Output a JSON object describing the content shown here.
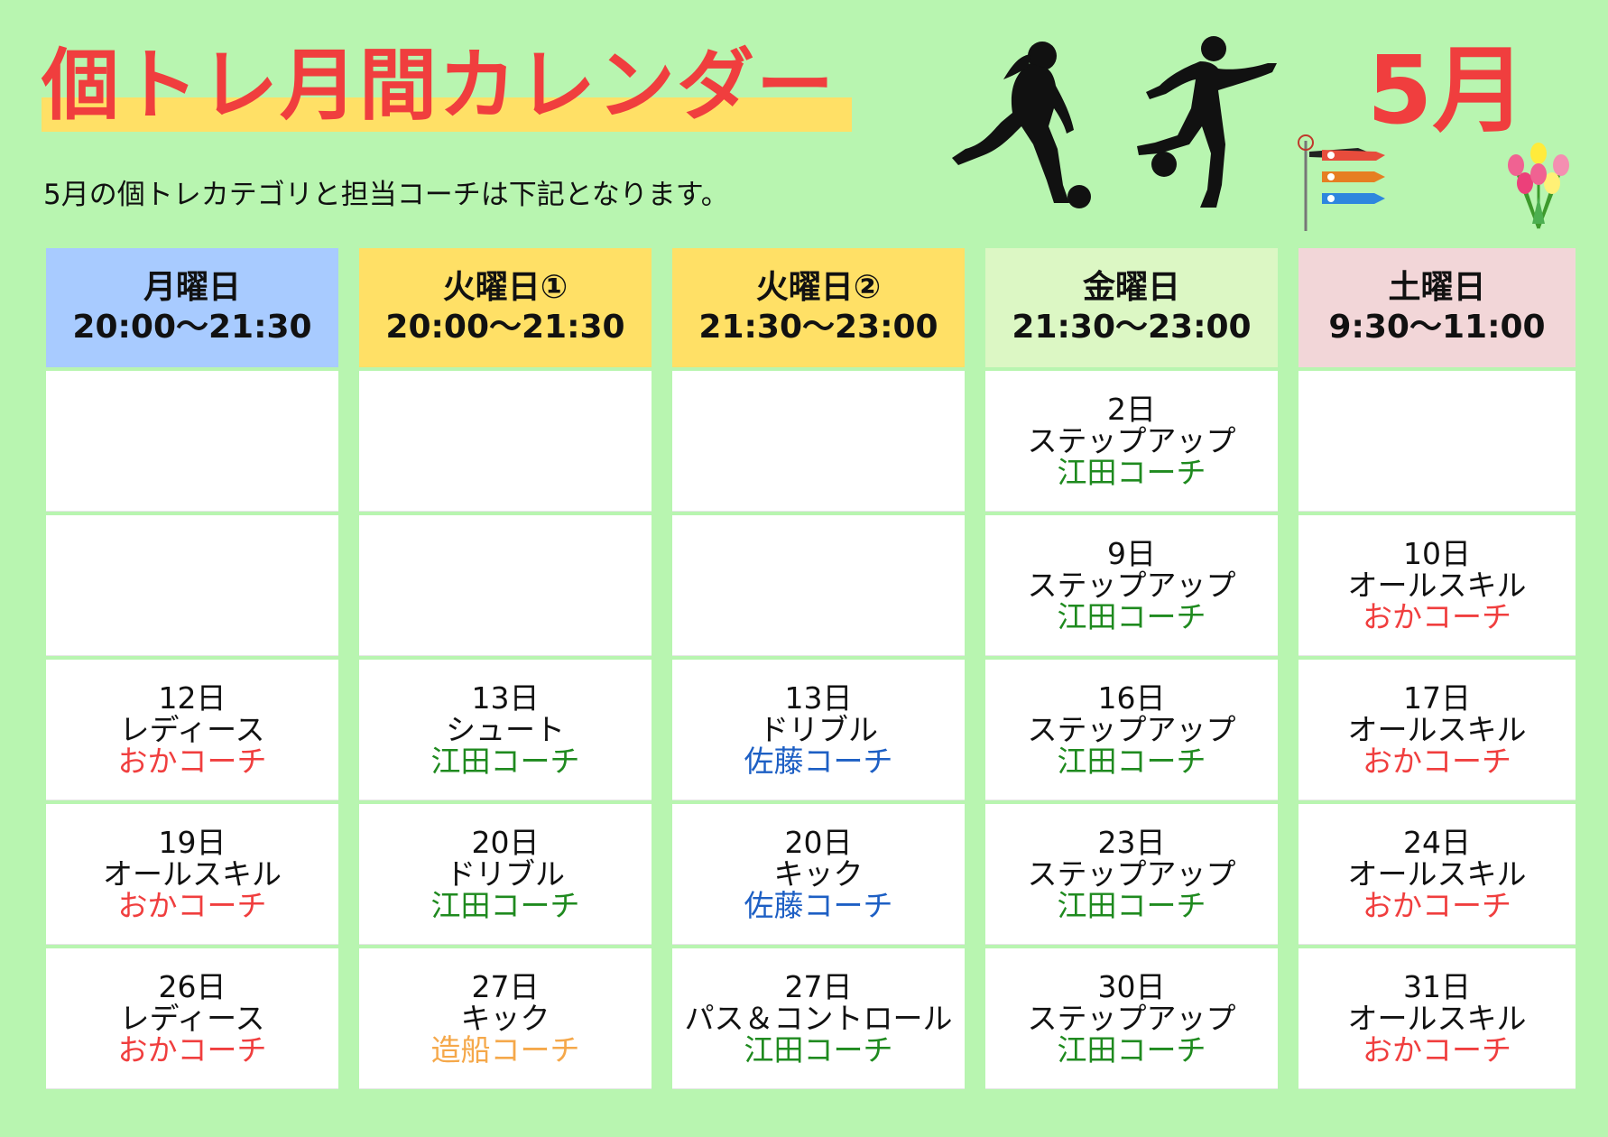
{
  "header": {
    "title": "個トレ月間カレンダー",
    "subtitle": "5月の個トレカテゴリと担当コーチは下記となります。",
    "month": "5月"
  },
  "colors": {
    "background": "#b8f5b0",
    "title_red": "#f03e3e",
    "highlight_yellow": "#ffe066",
    "coach_green": "#1f8a1f",
    "coach_blue": "#1d5fc4",
    "coach_red": "#f03e3e",
    "coach_orange": "#f5a84a"
  },
  "columns": [
    {
      "day": "月曜日",
      "time": "20:00〜21:30",
      "color": "#a8cbff",
      "cells": [
        null,
        null,
        {
          "date": "12日",
          "category": "レディース",
          "coach": "おかコーチ",
          "coach_color": "#f03e3e"
        },
        {
          "date": "19日",
          "category": "オールスキル",
          "coach": "おかコーチ",
          "coach_color": "#f03e3e"
        },
        {
          "date": "26日",
          "category": "レディース",
          "coach": "おかコーチ",
          "coach_color": "#f03e3e"
        }
      ]
    },
    {
      "day": "火曜日①",
      "time": "20:00〜21:30",
      "color": "#ffe066",
      "cells": [
        null,
        null,
        {
          "date": "13日",
          "category": "シュート",
          "coach": "江田コーチ",
          "coach_color": "#1f8a1f"
        },
        {
          "date": "20日",
          "category": "ドリブル",
          "coach": "江田コーチ",
          "coach_color": "#1f8a1f"
        },
        {
          "date": "27日",
          "category": "キック",
          "coach": "造船コーチ",
          "coach_color": "#f5a84a"
        }
      ]
    },
    {
      "day": "火曜日②",
      "time": "21:30〜23:00",
      "color": "#ffe066",
      "cells": [
        null,
        null,
        {
          "date": "13日",
          "category": "ドリブル",
          "coach": "佐藤コーチ",
          "coach_color": "#1d5fc4"
        },
        {
          "date": "20日",
          "category": "キック",
          "coach": "佐藤コーチ",
          "coach_color": "#1d5fc4"
        },
        {
          "date": "27日",
          "category": "パス＆コントロール",
          "coach": "江田コーチ",
          "coach_color": "#1f8a1f"
        }
      ]
    },
    {
      "day": "金曜日",
      "time": "21:30〜23:00",
      "color": "#dcf7c4",
      "cells": [
        {
          "date": "2日",
          "category": "ステップアップ",
          "coach": "江田コーチ",
          "coach_color": "#1f8a1f"
        },
        {
          "date": "9日",
          "category": "ステップアップ",
          "coach": "江田コーチ",
          "coach_color": "#1f8a1f"
        },
        {
          "date": "16日",
          "category": "ステップアップ",
          "coach": "江田コーチ",
          "coach_color": "#1f8a1f"
        },
        {
          "date": "23日",
          "category": "ステップアップ",
          "coach": "江田コーチ",
          "coach_color": "#1f8a1f"
        },
        {
          "date": "30日",
          "category": "ステップアップ",
          "coach": "江田コーチ",
          "coach_color": "#1f8a1f"
        }
      ]
    },
    {
      "day": "土曜日",
      "time": "9:30〜11:00",
      "color": "#f2d6d8",
      "cells": [
        null,
        {
          "date": "10日",
          "category": "オールスキル",
          "coach": "おかコーチ",
          "coach_color": "#f03e3e"
        },
        {
          "date": "17日",
          "category": "オールスキル",
          "coach": "おかコーチ",
          "coach_color": "#f03e3e"
        },
        {
          "date": "24日",
          "category": "オールスキル",
          "coach": "おかコーチ",
          "coach_color": "#f03e3e"
        },
        {
          "date": "31日",
          "category": "オールスキル",
          "coach": "おかコーチ",
          "coach_color": "#f03e3e"
        }
      ]
    }
  ],
  "icons": [
    "soccer-player-woman-icon",
    "soccer-player-man-icon",
    "koinobori-icon",
    "tulips-icon"
  ]
}
